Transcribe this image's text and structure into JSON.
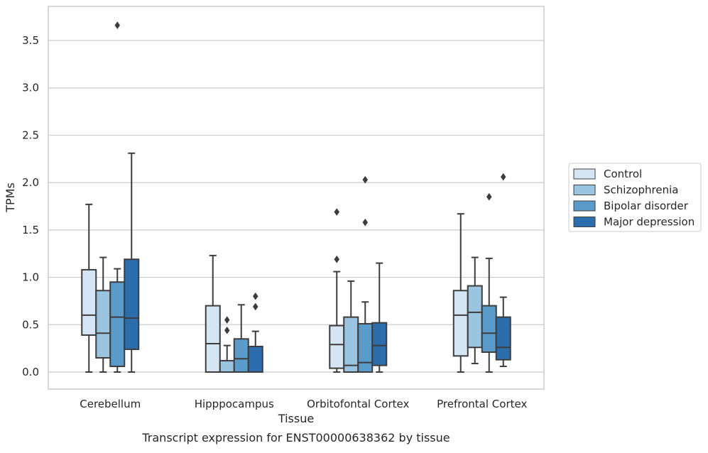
{
  "chart_data": {
    "type": "box",
    "xlabel": "Tissue",
    "ylabel": "TPMs",
    "caption": "Transcript expression for ENST00000638362 by tissue",
    "ylim": [
      -0.18,
      3.86
    ],
    "yticks": [
      0.0,
      0.5,
      1.0,
      1.5,
      2.0,
      2.5,
      3.0,
      3.5
    ],
    "ytick_labels": [
      "0.0",
      "0.5",
      "1.0",
      "1.5",
      "2.0",
      "2.5",
      "3.0",
      "3.5"
    ],
    "grid": "horizontal",
    "legend_position": "right",
    "categories": [
      "Cerebellum",
      "Hipppocampus",
      "Orbitofontal Cortex",
      "Prefrontal Cortex"
    ],
    "series": [
      {
        "name": "Control",
        "color": "#d6e5f4",
        "boxes": [
          {
            "whislo": 0.0,
            "q1": 0.39,
            "med": 0.6,
            "q3": 1.08,
            "whishi": 1.77,
            "fliers": []
          },
          {
            "whislo": 0.0,
            "q1": 0.0,
            "med": 0.3,
            "q3": 0.7,
            "whishi": 1.23,
            "fliers": []
          },
          {
            "whislo": 0.0,
            "q1": 0.04,
            "med": 0.29,
            "q3": 0.49,
            "whishi": 1.06,
            "fliers": [
              1.19,
              1.69
            ]
          },
          {
            "whislo": 0.0,
            "q1": 0.17,
            "med": 0.6,
            "q3": 0.86,
            "whishi": 1.67,
            "fliers": []
          }
        ]
      },
      {
        "name": "Schizophrenia",
        "color": "#9ac4df",
        "boxes": [
          {
            "whislo": 0.0,
            "q1": 0.15,
            "med": 0.41,
            "q3": 0.86,
            "whishi": 1.21,
            "fliers": []
          },
          {
            "whislo": 0.0,
            "q1": 0.0,
            "med": 0.0,
            "q3": 0.12,
            "whishi": 0.28,
            "fliers": [
              0.44,
              0.55
            ]
          },
          {
            "whislo": 0.0,
            "q1": 0.0,
            "med": 0.07,
            "q3": 0.58,
            "whishi": 0.96,
            "fliers": []
          },
          {
            "whislo": 0.09,
            "q1": 0.26,
            "med": 0.63,
            "q3": 0.91,
            "whishi": 1.21,
            "fliers": []
          }
        ]
      },
      {
        "name": "Bipolar disorder",
        "color": "#5b9bc9",
        "boxes": [
          {
            "whislo": 0.0,
            "q1": 0.06,
            "med": 0.58,
            "q3": 0.95,
            "whishi": 1.09,
            "fliers": [
              3.66
            ]
          },
          {
            "whislo": 0.0,
            "q1": 0.0,
            "med": 0.14,
            "q3": 0.35,
            "whishi": 0.71,
            "fliers": []
          },
          {
            "whislo": 0.0,
            "q1": 0.0,
            "med": 0.1,
            "q3": 0.51,
            "whishi": 0.74,
            "fliers": [
              1.58,
              2.03
            ]
          },
          {
            "whislo": 0.0,
            "q1": 0.21,
            "med": 0.41,
            "q3": 0.7,
            "whishi": 1.2,
            "fliers": [
              1.85
            ]
          }
        ]
      },
      {
        "name": "Major depression",
        "color": "#2c6ead",
        "boxes": [
          {
            "whislo": 0.0,
            "q1": 0.24,
            "med": 0.57,
            "q3": 1.19,
            "whishi": 2.31,
            "fliers": []
          },
          {
            "whislo": 0.0,
            "q1": 0.0,
            "med": 0.0,
            "q3": 0.27,
            "whishi": 0.43,
            "fliers": [
              0.69,
              0.8
            ]
          },
          {
            "whislo": 0.0,
            "q1": 0.07,
            "med": 0.28,
            "q3": 0.52,
            "whishi": 1.15,
            "fliers": []
          },
          {
            "whislo": 0.06,
            "q1": 0.13,
            "med": 0.26,
            "q3": 0.58,
            "whishi": 0.79,
            "fliers": [
              2.06
            ]
          }
        ]
      }
    ]
  },
  "colors": {
    "axes_edge": "#cccccc",
    "grid": "#cccccc",
    "box_line": "#3d3d3d",
    "text": "#262626"
  }
}
